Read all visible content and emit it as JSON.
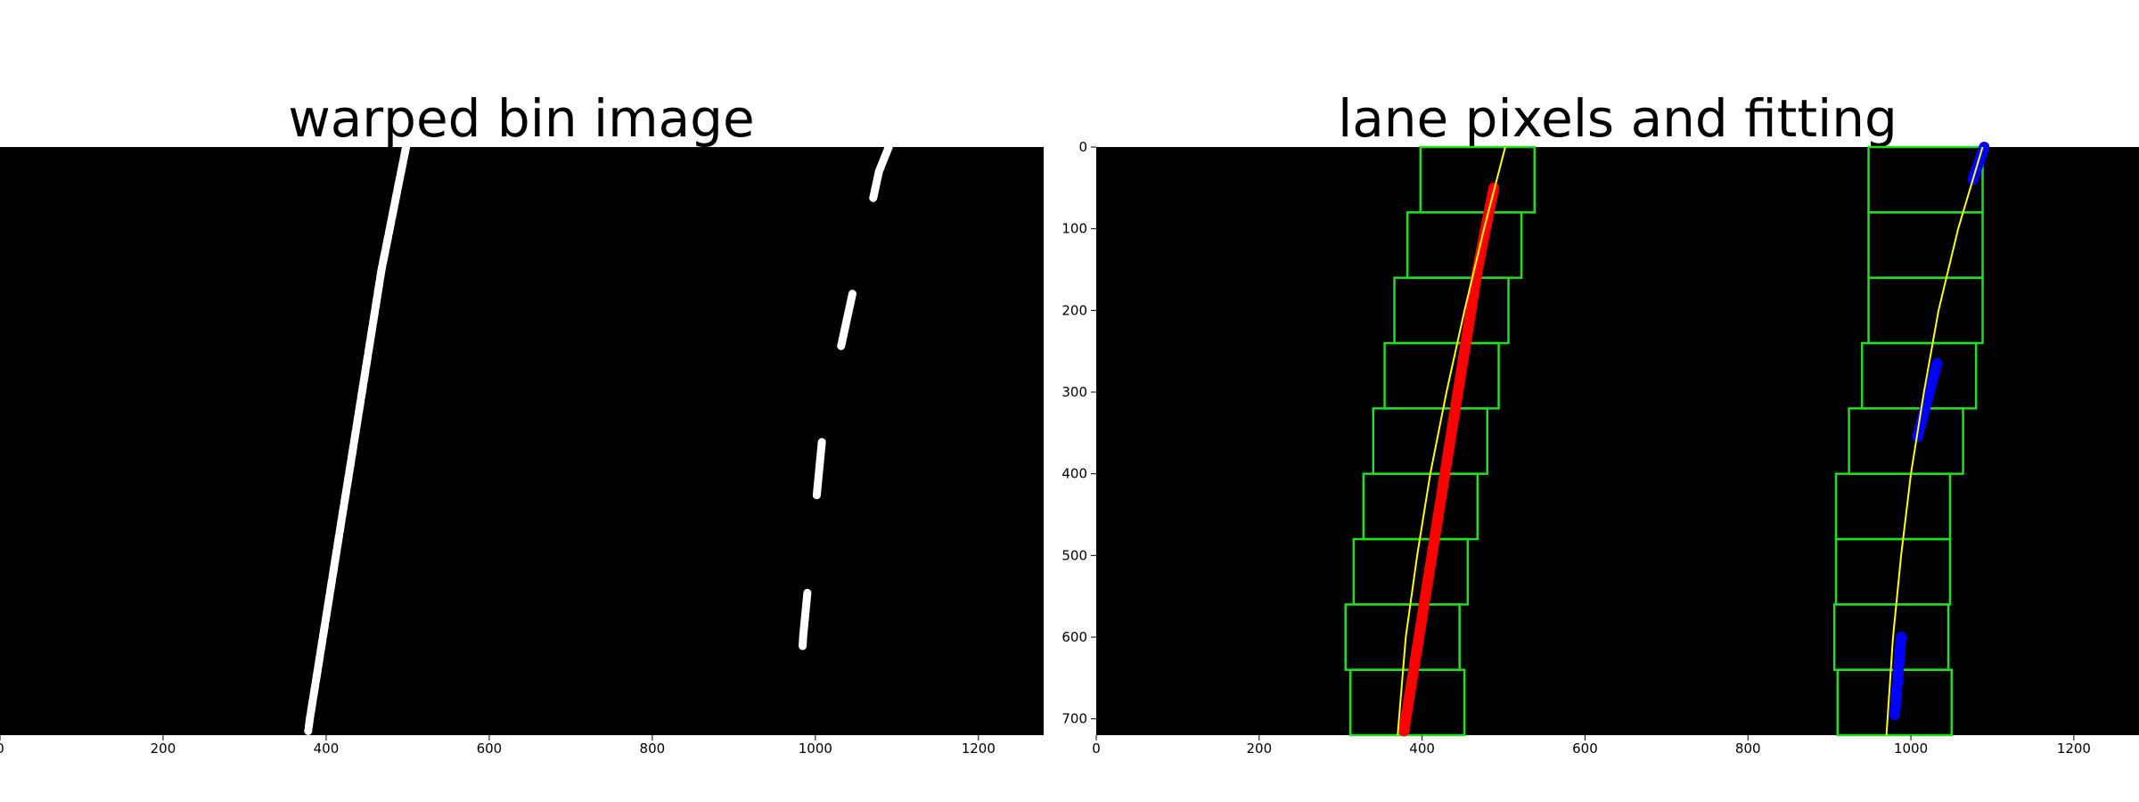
{
  "chart_data": [
    {
      "type": "image",
      "title": "warped bin image",
      "xlim": [
        0,
        1280
      ],
      "ylim": [
        720,
        0
      ],
      "xticks": [
        0,
        200,
        400,
        600,
        800,
        1000,
        1200
      ],
      "xtick_labels": [
        "0",
        "200",
        "400",
        "600",
        "800",
        "1000",
        "1200"
      ],
      "yticks": [],
      "background": "#000000",
      "pixel_color": "#ffffff",
      "lane_pixels": [
        {
          "name": "left-lane-pixels",
          "y": [
            0,
            50,
            100,
            150,
            200,
            250,
            300,
            350,
            400,
            450,
            500,
            550,
            600,
            650,
            700,
            715
          ],
          "x": [
            498,
            488,
            478,
            468,
            460,
            452,
            444,
            436,
            428,
            420,
            412,
            404,
            396,
            388,
            380,
            378
          ]
        },
        {
          "name": "right-lane-pixels",
          "y": [
            0,
            30,
            260,
            300,
            340,
            600,
            690
          ],
          "x": [
            1090,
            1078,
            1028,
            1020,
            1010,
            985,
            980
          ]
        }
      ]
    },
    {
      "type": "image",
      "title": "lane pixels and fitting",
      "xlim": [
        0,
        1280
      ],
      "ylim": [
        720,
        0
      ],
      "xticks": [
        0,
        200,
        400,
        600,
        800,
        1000,
        1200
      ],
      "xtick_labels": [
        "0",
        "200",
        "400",
        "600",
        "800",
        "1000",
        "1200"
      ],
      "yticks": [
        0,
        100,
        200,
        300,
        400,
        500,
        600,
        700
      ],
      "ytick_labels": [
        "0",
        "100",
        "200",
        "300",
        "400",
        "500",
        "600",
        "700"
      ],
      "background": "#000000",
      "window_color": "#22dd22",
      "left_pixel_color": "#ff0000",
      "right_pixel_color": "#0000ff",
      "fit_color": "#ffff00",
      "left_windows": [
        {
          "y": [
            640,
            720
          ],
          "x": [
            312,
            452
          ]
        },
        {
          "y": [
            560,
            640
          ],
          "x": [
            306,
            446
          ]
        },
        {
          "y": [
            480,
            560
          ],
          "x": [
            316,
            456
          ]
        },
        {
          "y": [
            400,
            480
          ],
          "x": [
            328,
            468
          ]
        },
        {
          "y": [
            320,
            400
          ],
          "x": [
            340,
            480
          ]
        },
        {
          "y": [
            240,
            320
          ],
          "x": [
            354,
            494
          ]
        },
        {
          "y": [
            160,
            240
          ],
          "x": [
            366,
            506
          ]
        },
        {
          "y": [
            80,
            160
          ],
          "x": [
            382,
            522
          ]
        },
        {
          "y": [
            0,
            80
          ],
          "x": [
            398,
            538
          ]
        }
      ],
      "right_windows": [
        {
          "y": [
            640,
            720
          ],
          "x": [
            910,
            1050
          ]
        },
        {
          "y": [
            560,
            640
          ],
          "x": [
            906,
            1046
          ]
        },
        {
          "y": [
            480,
            560
          ],
          "x": [
            908,
            1048
          ]
        },
        {
          "y": [
            400,
            480
          ],
          "x": [
            908,
            1048
          ]
        },
        {
          "y": [
            320,
            400
          ],
          "x": [
            924,
            1064
          ]
        },
        {
          "y": [
            240,
            320
          ],
          "x": [
            940,
            1080
          ]
        },
        {
          "y": [
            160,
            240
          ],
          "x": [
            948,
            1088
          ]
        },
        {
          "y": [
            80,
            160
          ],
          "x": [
            948,
            1088
          ]
        },
        {
          "y": [
            0,
            80
          ],
          "x": [
            948,
            1088
          ]
        }
      ],
      "left_pixels": {
        "y": [
          50,
          100,
          150,
          200,
          250,
          300,
          350,
          400,
          450,
          500,
          550,
          600,
          650,
          700,
          715
        ],
        "x": [
          488,
          478,
          468,
          460,
          452,
          444,
          436,
          428,
          420,
          412,
          404,
          396,
          388,
          380,
          378
        ]
      },
      "right_pixels": [
        {
          "y": [
            0,
            40
          ],
          "x": [
            1090,
            1076
          ]
        },
        {
          "y": [
            265,
            355
          ],
          "x": [
            1032,
            1008
          ]
        },
        {
          "y": [
            600,
            695
          ],
          "x": [
            988,
            980
          ]
        }
      ],
      "left_fit": {
        "y": [
          0,
          100,
          200,
          300,
          400,
          500,
          600,
          720
        ],
        "x": [
          502,
          476,
          452,
          430,
          410,
          394,
          380,
          370
        ]
      },
      "right_fit": {
        "y": [
          0,
          100,
          200,
          300,
          400,
          500,
          600,
          720
        ],
        "x": [
          1088,
          1058,
          1034,
          1016,
          1000,
          988,
          978,
          970
        ]
      }
    }
  ]
}
